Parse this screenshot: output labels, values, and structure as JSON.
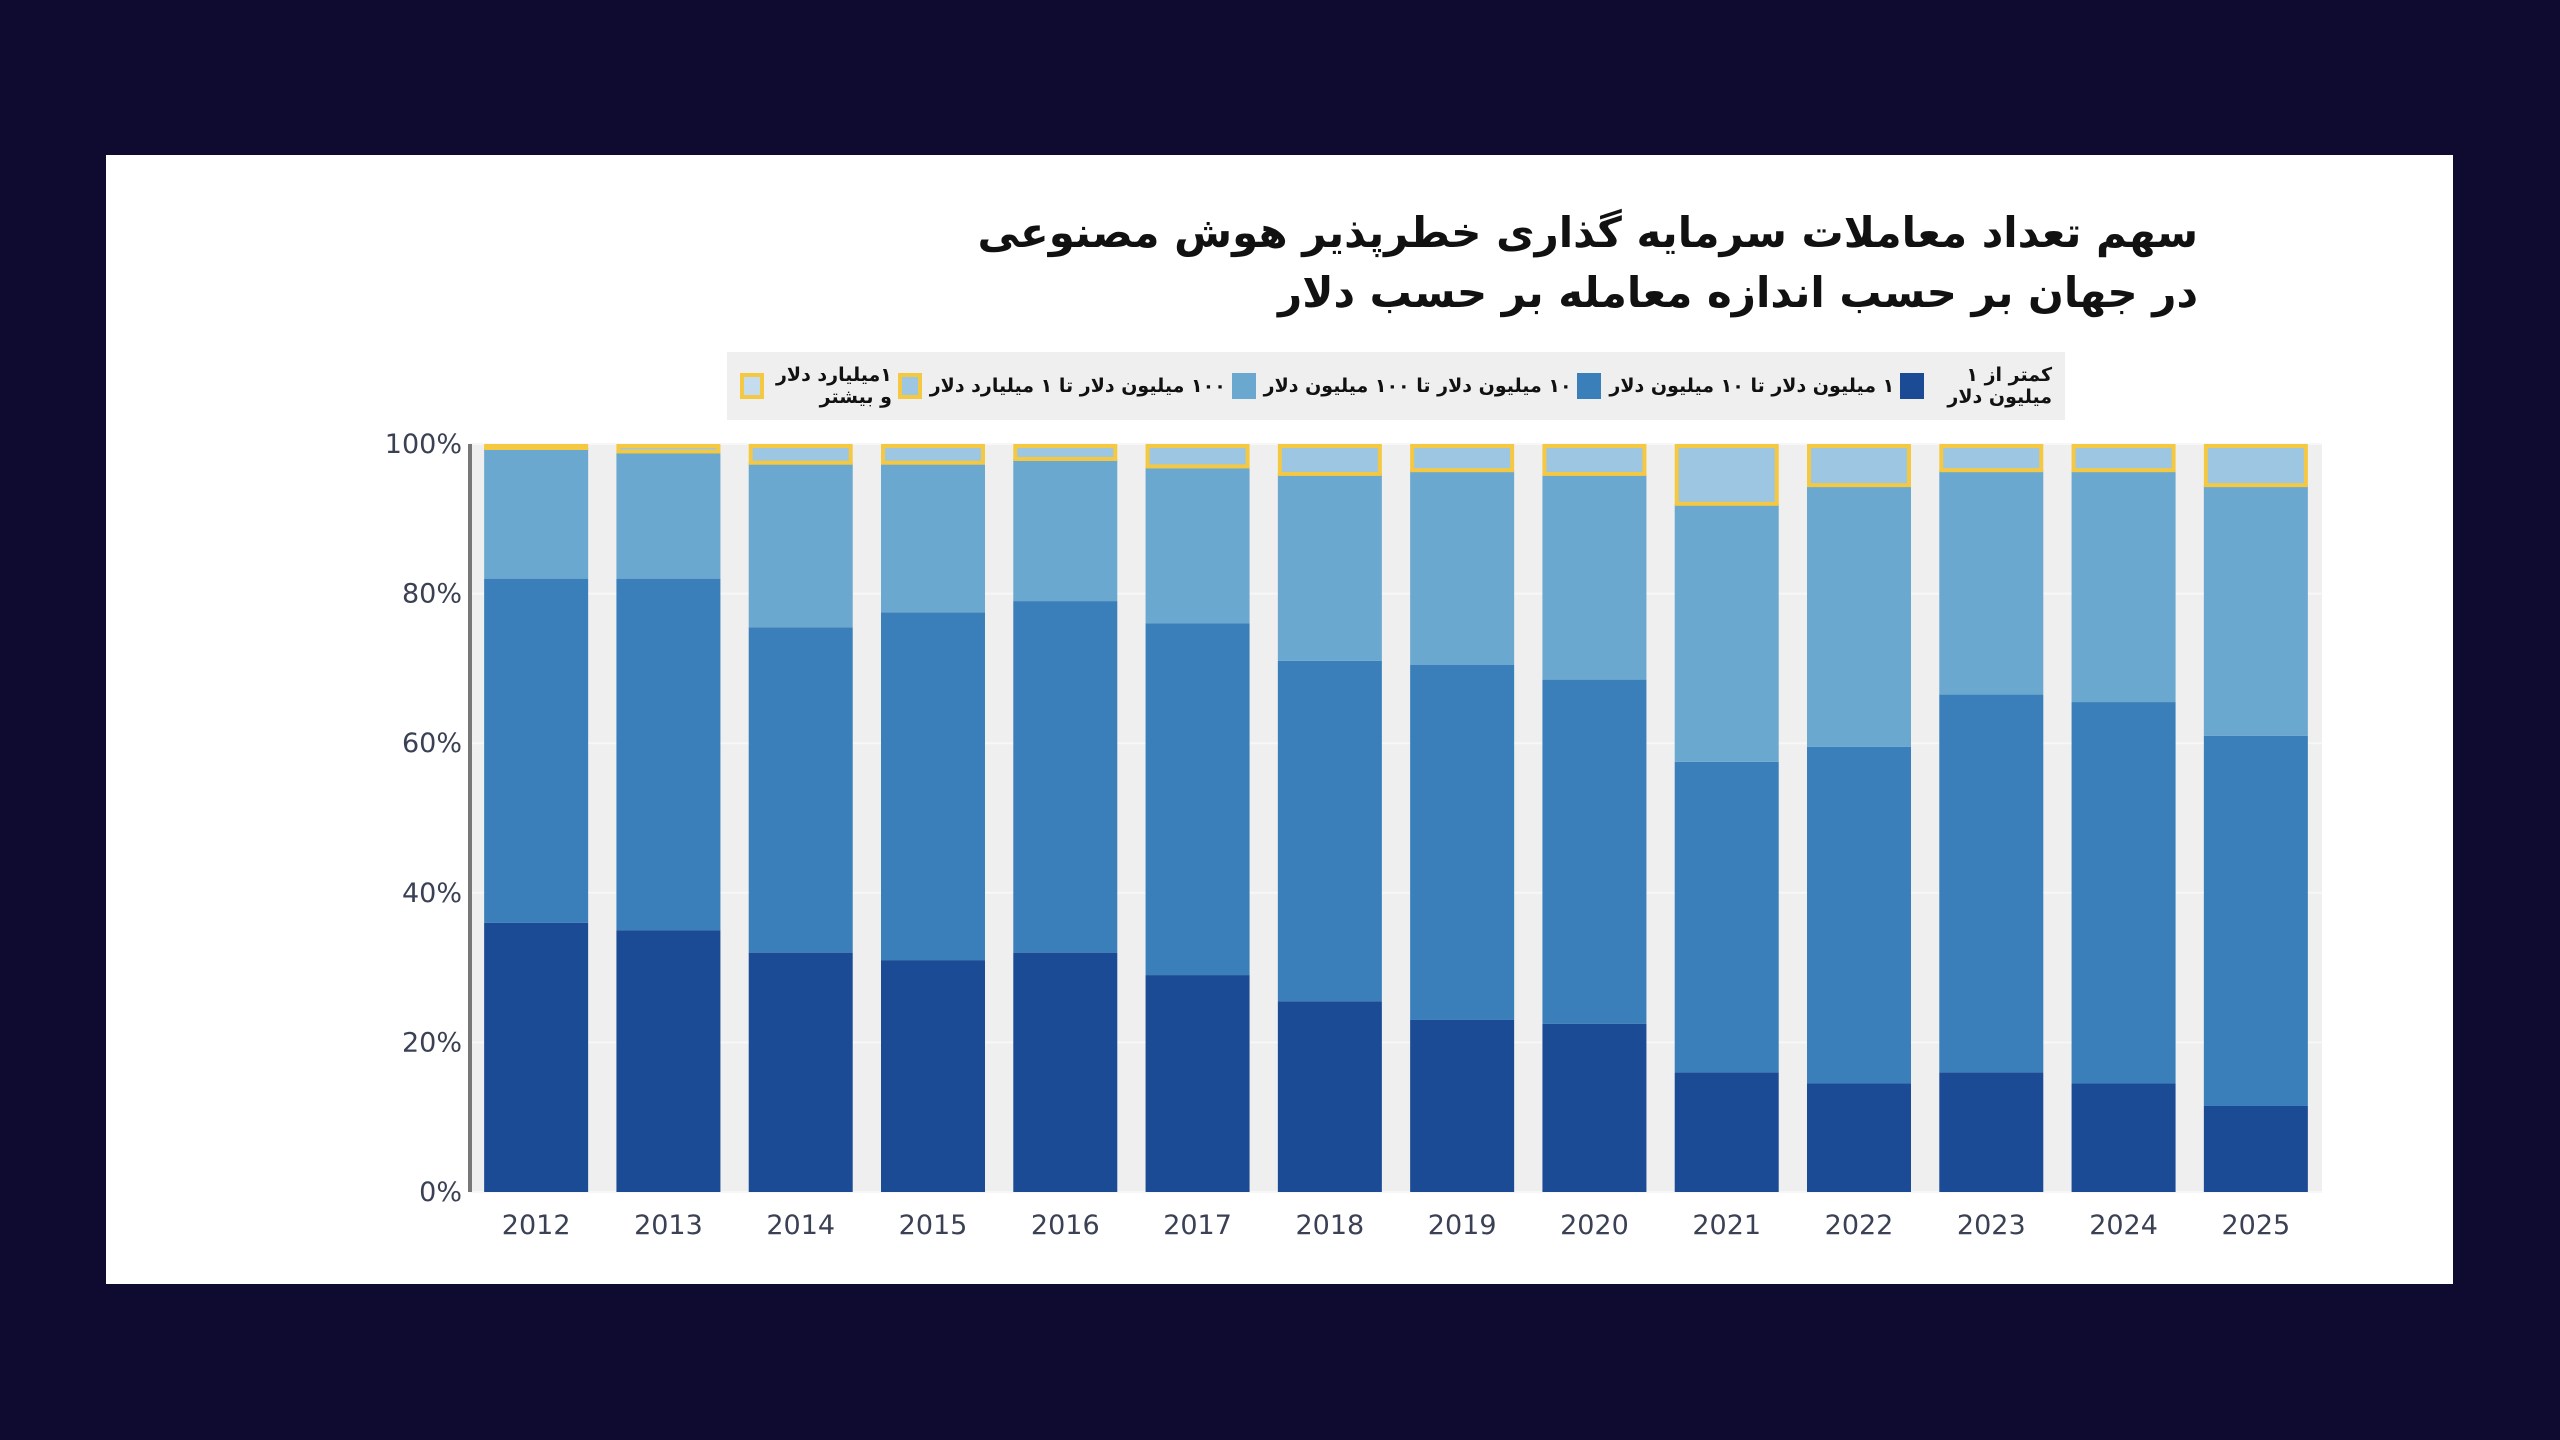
{
  "title": {
    "line1": "سهم تعداد معاملات سرمایه گذاری خطرپذیر هوش مصنوعی",
    "line2": "در جهان بر حسب اندازه معامله بر حسب دلار"
  },
  "colors": {
    "background": "#0f0a30",
    "panel": "#ffffff",
    "plot_bg": "#efefef",
    "highlight_outline": "#f5c842"
  },
  "chart_data": {
    "type": "bar",
    "stacked": true,
    "normalized": true,
    "categories": [
      "2012",
      "2013",
      "2014",
      "2015",
      "2016",
      "2017",
      "2018",
      "2019",
      "2020",
      "2021",
      "2022",
      "2023",
      "2024",
      "2025"
    ],
    "ylim": [
      0,
      100
    ],
    "yticks": [
      "0%",
      "20%",
      "40%",
      "60%",
      "80%",
      "100%"
    ],
    "ytick_values": [
      0,
      20,
      40,
      60,
      80,
      100
    ],
    "grid": true,
    "legend_position": "top",
    "series": [
      {
        "name": "کمتر از ۱ میلیون دلار",
        "color": "#1c4b96",
        "values": [
          36,
          35,
          32,
          31,
          32,
          29,
          25.5,
          23,
          22.5,
          16,
          14.5,
          16,
          14.5,
          11.5
        ]
      },
      {
        "name": "۱ میلیون دلار تا ۱۰ میلیون دلار",
        "color": "#3a7fba",
        "values": [
          46,
          47,
          43.5,
          46.5,
          47,
          47,
          45.5,
          47.5,
          46,
          41.5,
          45,
          50.5,
          51,
          49.5
        ]
      },
      {
        "name": "۱۰ میلیون دلار تا ۱۰۰ میلیون دلار",
        "color": "#6aa8d0",
        "values": [
          17.5,
          17,
          22,
          20,
          19,
          21,
          25,
          26,
          27.5,
          34.5,
          35,
          30,
          31,
          33.5
        ]
      },
      {
        "name": "۱۰۰ میلیون دلار تا ۱ میلیارد دلار",
        "color": "#9dc6e2",
        "outline": "#f5c842",
        "values": [
          0.5,
          1,
          2.5,
          2.5,
          2,
          3,
          4,
          3.5,
          4,
          8,
          5.5,
          3.5,
          3.5,
          5.5
        ]
      }
    ],
    "legend_extra": {
      "name": "۱میلیارد دلار و بیشتر",
      "color": "#c5dcef",
      "outline": "#f5c842"
    }
  }
}
